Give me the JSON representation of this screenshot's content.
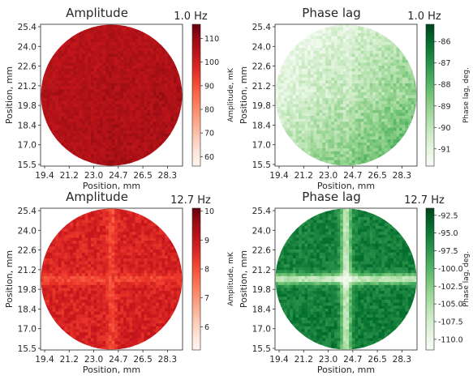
{
  "chart_data": [
    {
      "type": "heatmap",
      "title": "Amplitude",
      "frequency_label": "1.0 Hz",
      "xlabel": "Position, mm",
      "ylabel": "Position, mm",
      "x_ticks": [
        "19.4",
        "21.2",
        "23.0",
        "24.7",
        "26.5",
        "28.3"
      ],
      "y_ticks": [
        "25.4",
        "24.0",
        "22.6",
        "21.2",
        "19.8",
        "18.4",
        "17.0",
        "15.5"
      ],
      "colorbar_label": "Amplitude, mK",
      "colorbar_ticks": [
        "110",
        "100",
        "90",
        "80",
        "70",
        "60"
      ],
      "colorbar_range": [
        56,
        116
      ],
      "colormap": "Reds",
      "pattern": "uniform",
      "mean_value": 106,
      "cross_strength": 0.02,
      "gradient": 0.03,
      "noise": 0.05
    },
    {
      "type": "heatmap",
      "title": "Phase lag",
      "frequency_label": "1.0 Hz",
      "xlabel": "Position, mm",
      "ylabel": "Position, mm",
      "x_ticks": [
        "19.4",
        "21.2",
        "23.0",
        "24.7",
        "26.5",
        "28.3"
      ],
      "y_ticks": [
        "25.4",
        "24.0",
        "22.6",
        "21.2",
        "19.8",
        "18.4",
        "17.0",
        "15.5"
      ],
      "colorbar_label": "Phase lag, deg.",
      "colorbar_ticks": [
        "-86",
        "-87",
        "-88",
        "-89",
        "-90",
        "-91"
      ],
      "colorbar_range": [
        -91.8,
        -85.2
      ],
      "colormap": "Greens",
      "pattern": "gradient",
      "mean_value": -89.8,
      "cross_strength": -0.05,
      "gradient": 0.35,
      "noise": 0.1
    },
    {
      "type": "heatmap",
      "title": "Amplitude",
      "frequency_label": "12.7 Hz",
      "xlabel": "Position, mm",
      "ylabel": "Position, mm",
      "x_ticks": [
        "19.4",
        "21.2",
        "23.0",
        "24.7",
        "26.5",
        "28.3"
      ],
      "y_ticks": [
        "25.4",
        "24.0",
        "22.6",
        "21.2",
        "19.8",
        "18.4",
        "17.0",
        "15.5"
      ],
      "colorbar_label": "Amplitude, mK",
      "colorbar_ticks": [
        "10",
        "9",
        "8",
        "7",
        "6"
      ],
      "colorbar_range": [
        5.2,
        10.1
      ],
      "colormap": "Reds",
      "pattern": "cross-dim",
      "mean_value": 8.7,
      "cross_strength": -0.12,
      "gradient": 0.02,
      "noise": 0.07
    },
    {
      "type": "heatmap",
      "title": "Phase lag",
      "frequency_label": "12.7 Hz",
      "xlabel": "Position, mm",
      "ylabel": "Position, mm",
      "x_ticks": [
        "19.4",
        "21.2",
        "23.0",
        "24.7",
        "26.5",
        "28.3"
      ],
      "y_ticks": [
        "25.4",
        "24.0",
        "22.6",
        "21.2",
        "19.8",
        "18.4",
        "17.0",
        "15.5"
      ],
      "colorbar_label": "Phase lag, deg.",
      "colorbar_ticks": [
        "-92.5",
        "-95.0",
        "-97.5",
        "-100.0",
        "-102.5",
        "-105.0",
        "-107.5",
        "-110.0"
      ],
      "colorbar_range": [
        -111.5,
        -91.5
      ],
      "colormap": "Greens",
      "pattern": "cross-bright",
      "mean_value": -95.5,
      "cross_strength": -0.55,
      "gradient": 0.02,
      "noise": 0.08
    }
  ]
}
